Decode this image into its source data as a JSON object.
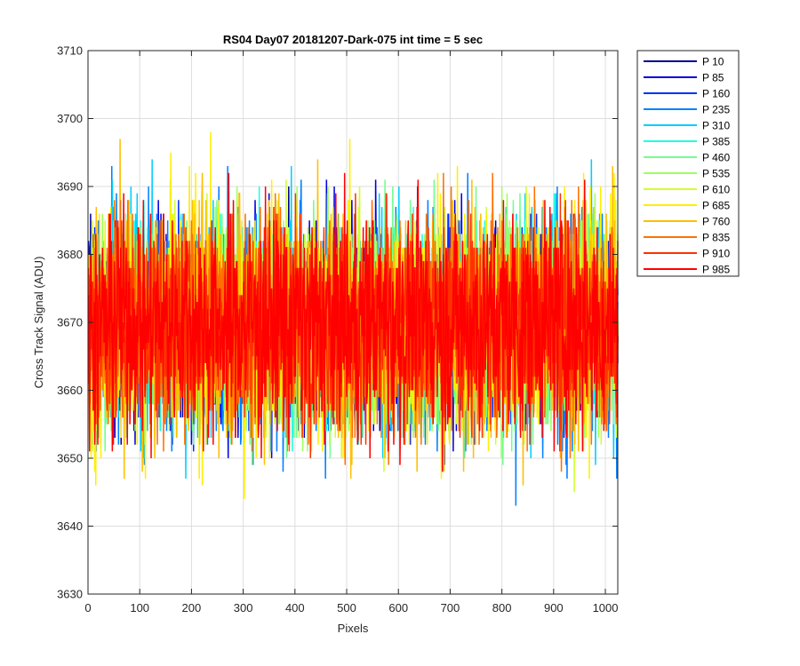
{
  "chart_data": {
    "type": "line",
    "title": "RS04 Day07 20181207-Dark-075 int time = 5 sec",
    "xlabel": "Pixels",
    "ylabel": "Cross Track Signal (ADU)",
    "xlim": [
      0,
      1024
    ],
    "ylim": [
      3630,
      3710
    ],
    "xticks": [
      0,
      100,
      200,
      300,
      400,
      500,
      600,
      700,
      800,
      900,
      1000
    ],
    "yticks": [
      3630,
      3640,
      3650,
      3660,
      3670,
      3680,
      3690,
      3700,
      3710
    ],
    "grid": true,
    "legend_position": "outside-right",
    "x_range": [
      1,
      1024
    ],
    "mean_level": 3670,
    "series": [
      {
        "name": "P 10",
        "color": "#00008f",
        "min": 3652,
        "max": 3695
      },
      {
        "name": "P 85",
        "color": "#0000df",
        "min": 3645,
        "max": 3697
      },
      {
        "name": "P 160",
        "color": "#0030ff",
        "min": 3648,
        "max": 3695
      },
      {
        "name": "P 235",
        "color": "#0080ff",
        "min": 3643,
        "max": 3701
      },
      {
        "name": "P 310",
        "color": "#00cfff",
        "min": 3644,
        "max": 3694
      },
      {
        "name": "P 385",
        "color": "#20ffdf",
        "min": 3646,
        "max": 3692
      },
      {
        "name": "P 460",
        "color": "#70ff8f",
        "min": 3645,
        "max": 3700
      },
      {
        "name": "P 535",
        "color": "#9fff60",
        "min": 3645,
        "max": 3700
      },
      {
        "name": "P 610",
        "color": "#cfff30",
        "min": 3638,
        "max": 3695
      },
      {
        "name": "P 685",
        "color": "#ffef00",
        "min": 3642,
        "max": 3699
      },
      {
        "name": "P 760",
        "color": "#ffbf00",
        "min": 3642,
        "max": 3697
      },
      {
        "name": "P 835",
        "color": "#ff7000",
        "min": 3643,
        "max": 3696
      },
      {
        "name": "P 910",
        "color": "#ff3000",
        "min": 3646,
        "max": 3696
      },
      {
        "name": "P 985",
        "color": "#ff0000",
        "min": 3644,
        "max": 3699
      }
    ]
  }
}
